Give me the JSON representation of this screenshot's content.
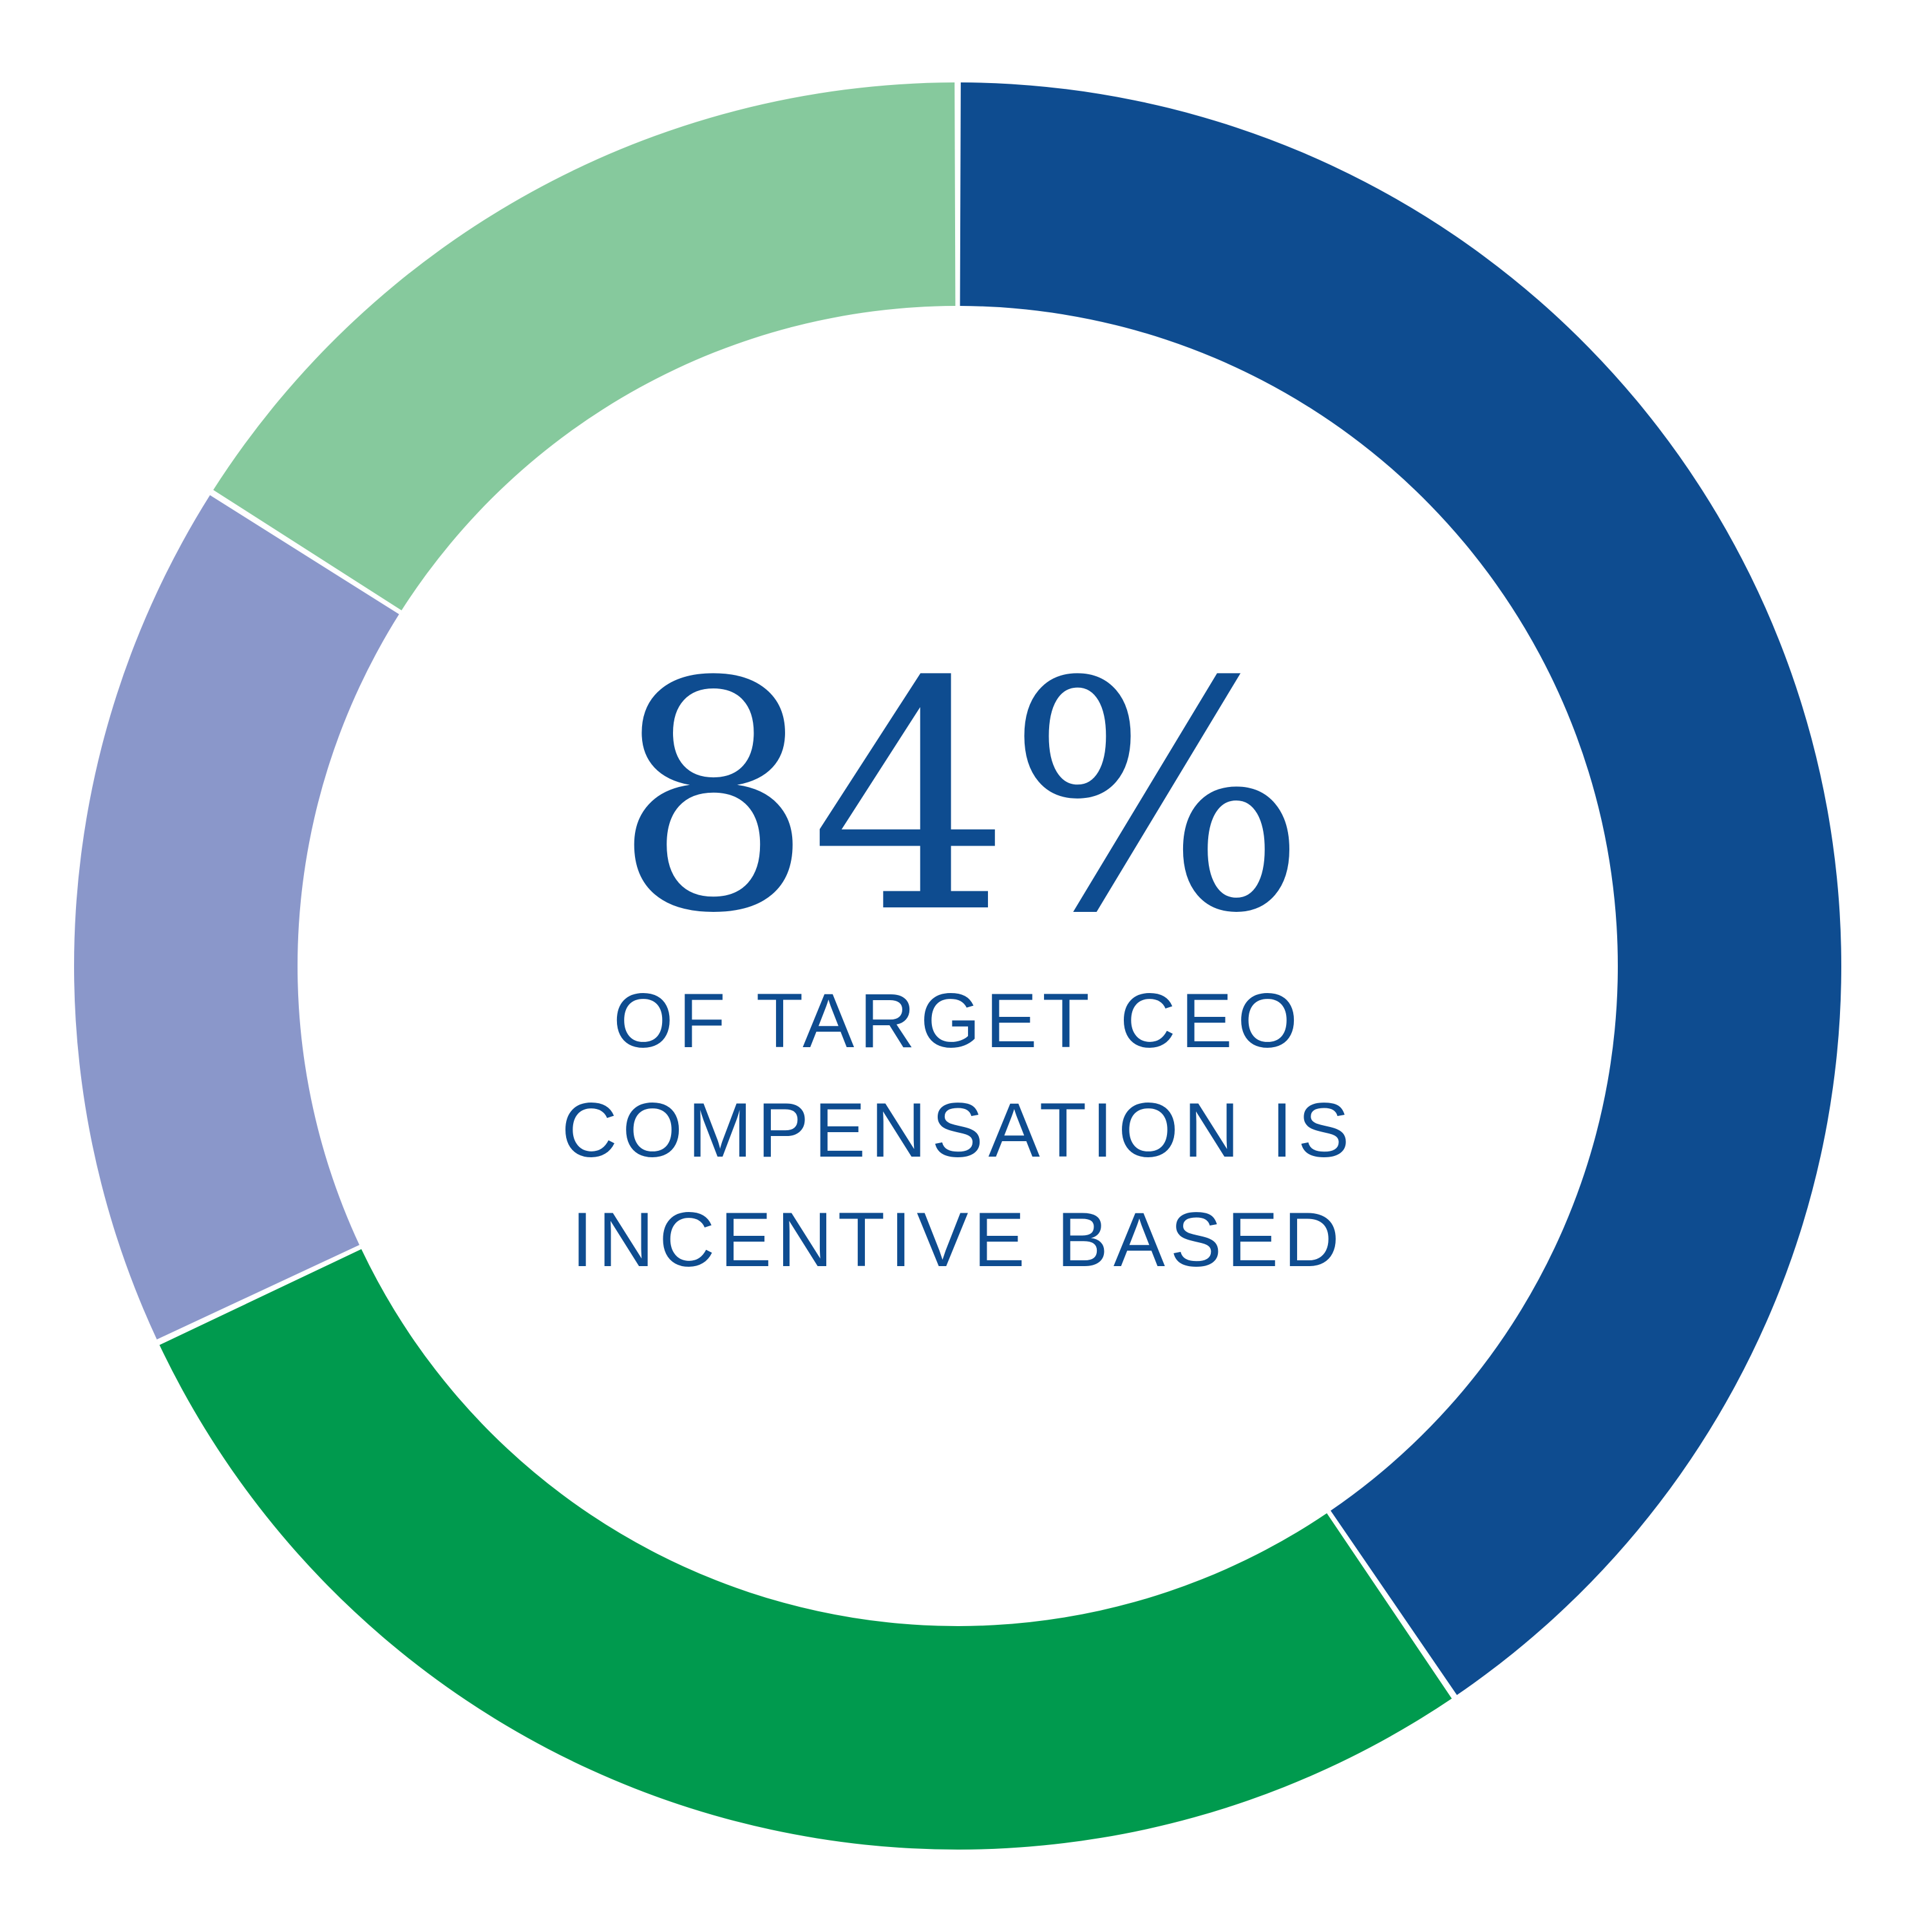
{
  "chart_data": {
    "type": "pie",
    "title": "",
    "center_value": "84%",
    "center_caption_lines": [
      "OF TARGET CEO",
      "COMPENSATION IS",
      "INCENTIVE BASED"
    ],
    "slices": [
      {
        "value": 40.5,
        "color": "#0e4c90"
      },
      {
        "value": 27.5,
        "color": "#009a4e"
      },
      {
        "value": 16.0,
        "color": "#8a97ca"
      },
      {
        "value": 16.0,
        "color": "#86c99d"
      }
    ]
  }
}
